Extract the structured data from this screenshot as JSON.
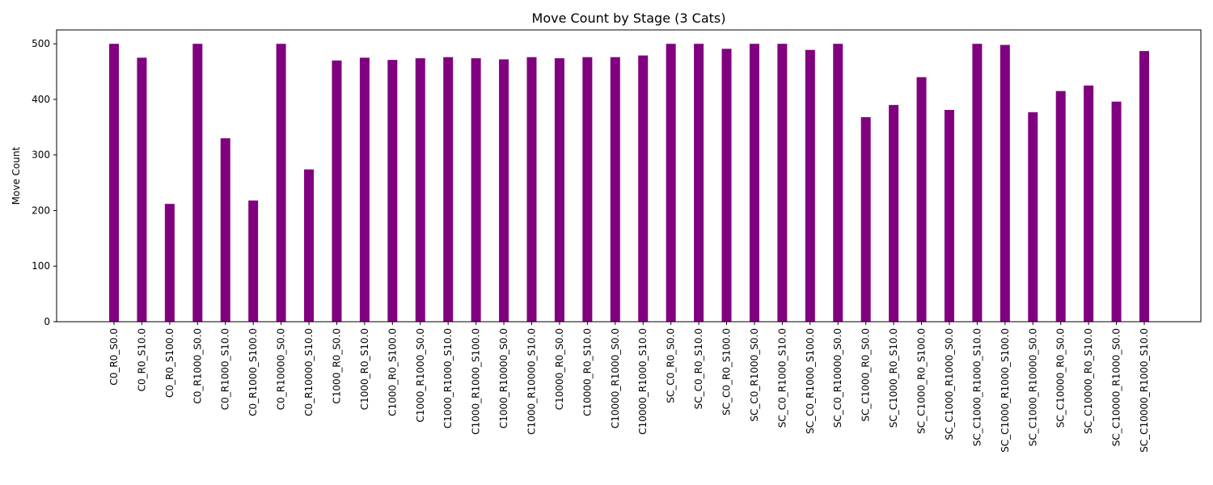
{
  "chart_data": {
    "type": "bar",
    "title": "Move Count by Stage (3 Cats)",
    "xlabel": "",
    "ylabel": "Move Count",
    "ylim": [
      0,
      525
    ],
    "yticks": [
      0,
      100,
      200,
      300,
      400,
      500
    ],
    "grid": false,
    "legend": "none",
    "bar_color": "#800080",
    "categories": [
      "C0_R0_S0.0",
      "C0_R0_S10.0",
      "C0_R0_S100.0",
      "C0_R1000_S0.0",
      "C0_R1000_S10.0",
      "C0_R1000_S100.0",
      "C0_R10000_S0.0",
      "C0_R10000_S10.0",
      "C1000_R0_S0.0",
      "C1000_R0_S10.0",
      "C1000_R0_S100.0",
      "C1000_R1000_S0.0",
      "C1000_R1000_S10.0",
      "C1000_R1000_S100.0",
      "C1000_R10000_S0.0",
      "C1000_R10000_S10.0",
      "C10000_R0_S0.0",
      "C10000_R0_S10.0",
      "C10000_R1000_S0.0",
      "C10000_R1000_S10.0",
      "SC_C0_R0_S0.0",
      "SC_C0_R0_S10.0",
      "SC_C0_R0_S100.0",
      "SC_C0_R1000_S0.0",
      "SC_C0_R1000_S10.0",
      "SC_C0_R1000_S100.0",
      "SC_C0_R10000_S0.0",
      "SC_C1000_R0_S0.0",
      "SC_C1000_R0_S10.0",
      "SC_C1000_R0_S100.0",
      "SC_C1000_R1000_S0.0",
      "SC_C1000_R1000_S10.0",
      "SC_C1000_R1000_S100.0",
      "SC_C1000_R10000_S0.0",
      "SC_C10000_R0_S0.0",
      "SC_C10000_R0_S10.0",
      "SC_C10000_R1000_S0.0",
      "SC_C10000_R1000_S10.0"
    ],
    "values": [
      500,
      475,
      212,
      500,
      330,
      218,
      500,
      274,
      470,
      475,
      471,
      474,
      476,
      474,
      472,
      476,
      474,
      476,
      476,
      479,
      500,
      500,
      491,
      500,
      500,
      489,
      500,
      368,
      390,
      440,
      381,
      500,
      498,
      377,
      415,
      425,
      396,
      487
    ]
  }
}
